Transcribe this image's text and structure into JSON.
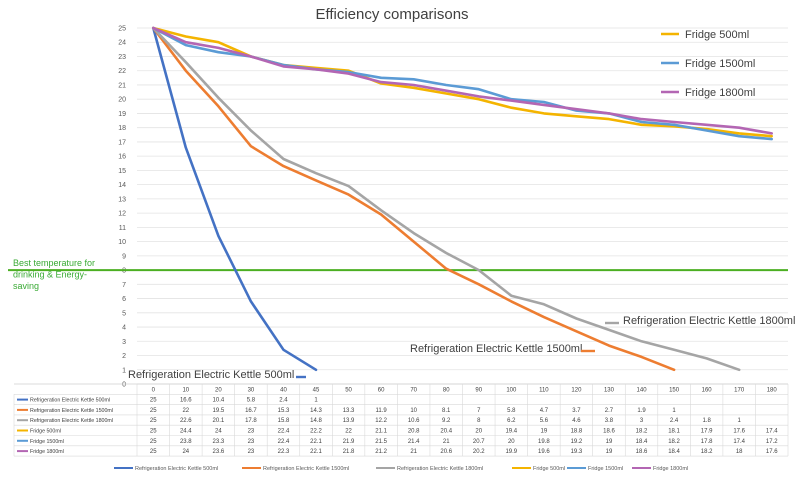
{
  "chart_data": {
    "type": "line",
    "title": "Efficiency comparisons",
    "x": [
      0,
      10,
      20,
      30,
      40,
      45,
      50,
      60,
      70,
      80,
      90,
      100,
      110,
      120,
      130,
      140,
      150,
      160,
      170,
      180
    ],
    "ylim": [
      0,
      25
    ],
    "y_ticks": [
      "0",
      "1",
      "2",
      "3",
      "4",
      "5",
      "6",
      "7",
      "8",
      "9",
      "10",
      "11",
      "12",
      "13",
      "14",
      "15",
      "16",
      "17",
      "18",
      "19",
      "20",
      "21",
      "22",
      "23",
      "24",
      "25"
    ],
    "grid": true,
    "series": [
      {
        "name": "Refrigeration Electric Kettle 500ml",
        "color": "#4472c4",
        "label": "Refrigeration Electric Kettle 500ml",
        "values": [
          25,
          16.6,
          10.4,
          5.8,
          2.4,
          1,
          null,
          null,
          null,
          null,
          null,
          null,
          null,
          null,
          null,
          null,
          null,
          null,
          null,
          null
        ],
        "cells": [
          "25",
          "16.6",
          "10.4",
          "5.8",
          "2.4",
          "1",
          "",
          "",
          "",
          "",
          "",
          "",
          "",
          "",
          "",
          "",
          "",
          "",
          "",
          ""
        ]
      },
      {
        "name": "Refrigeration Electric Kettle 1500ml",
        "color": "#ed7d31",
        "label": "Refrigeration Electric Kettle 1500ml",
        "values": [
          25,
          22,
          19.5,
          16.7,
          15.3,
          14.3,
          13.3,
          11.9,
          10,
          8.1,
          7,
          5.8,
          4.7,
          3.7,
          2.7,
          1.9,
          1,
          null,
          null,
          null
        ],
        "cells": [
          "25",
          "22",
          "19.5",
          "16.7",
          "15.3",
          "14.3",
          "13.3",
          "11.9",
          "10",
          "8.1",
          "7",
          "5.8",
          "4.7",
          "3.7",
          "2.7",
          "1.9",
          "1",
          "",
          "",
          ""
        ]
      },
      {
        "name": "Refrigeration Electric Kettle 1800ml",
        "color": "#a5a5a5",
        "label": "Refrigeration Electric Kettle 1800ml",
        "values": [
          25,
          22.6,
          20.1,
          17.8,
          15.8,
          14.8,
          13.9,
          12.2,
          10.6,
          9.2,
          8,
          6.2,
          5.6,
          4.6,
          3.8,
          3,
          2.4,
          1.8,
          1,
          null
        ],
        "cells": [
          "25",
          "22.6",
          "20.1",
          "17.8",
          "15.8",
          "14.8",
          "13.9",
          "12.2",
          "10.6",
          "9.2",
          "8",
          "6.2",
          "5.6",
          "4.6",
          "3.8",
          "3",
          "2.4",
          "1.8",
          "1",
          ""
        ]
      },
      {
        "name": "Fridge 500ml",
        "color": "#f4b400",
        "label": "Fridge 500ml",
        "values": [
          25,
          24.4,
          24,
          23,
          22.4,
          22.2,
          22,
          21.1,
          20.8,
          20.4,
          20,
          19.4,
          19,
          18.8,
          18.6,
          18.2,
          18.1,
          17.9,
          17.6,
          17.4
        ],
        "cells": [
          "25",
          "24.4",
          "24",
          "23",
          "22.4",
          "22.2",
          "22",
          "21.1",
          "20.8",
          "20.4",
          "20",
          "19.4",
          "19",
          "18.8",
          "18.6",
          "18.2",
          "18.1",
          "17.9",
          "17.6",
          "17.4"
        ]
      },
      {
        "name": "Fridge 1500ml",
        "color": "#5b9bd5",
        "label": "Fridge 1500ml",
        "values": [
          25,
          23.8,
          23.3,
          23,
          22.4,
          22.1,
          21.9,
          21.5,
          21.4,
          21,
          20.7,
          20,
          19.8,
          19.2,
          19,
          18.4,
          18.2,
          17.8,
          17.4,
          17.2
        ],
        "cells": [
          "25",
          "23.8",
          "23.3",
          "23",
          "22.4",
          "22.1",
          "21.9",
          "21.5",
          "21.4",
          "21",
          "20.7",
          "20",
          "19.8",
          "19.2",
          "19",
          "18.4",
          "18.2",
          "17.8",
          "17.4",
          "17.2"
        ]
      },
      {
        "name": "Fridge 1800ml",
        "color": "#b366b3",
        "label": "Fridge 1800ml",
        "values": [
          25,
          24,
          23.6,
          23,
          22.3,
          22.1,
          21.8,
          21.2,
          21,
          20.6,
          20.2,
          19.9,
          19.6,
          19.3,
          19,
          18.6,
          18.4,
          18.2,
          18,
          17.6
        ],
        "cells": [
          "25",
          "24",
          "23.6",
          "23",
          "22.3",
          "22.1",
          "21.8",
          "21.2",
          "21",
          "20.6",
          "20.2",
          "19.9",
          "19.6",
          "19.3",
          "19",
          "18.6",
          "18.4",
          "18.2",
          "18",
          "17.6"
        ]
      }
    ],
    "reference_line": {
      "value": 8,
      "color": "#4caf22",
      "label_lines": [
        "Best temperature for",
        "drinking & Energy-",
        "saving"
      ]
    },
    "legend": {
      "position": "top-right",
      "entries": [
        "Fridge 500ml",
        "Fridge 1500ml",
        "Fridge 1800ml"
      ]
    }
  }
}
